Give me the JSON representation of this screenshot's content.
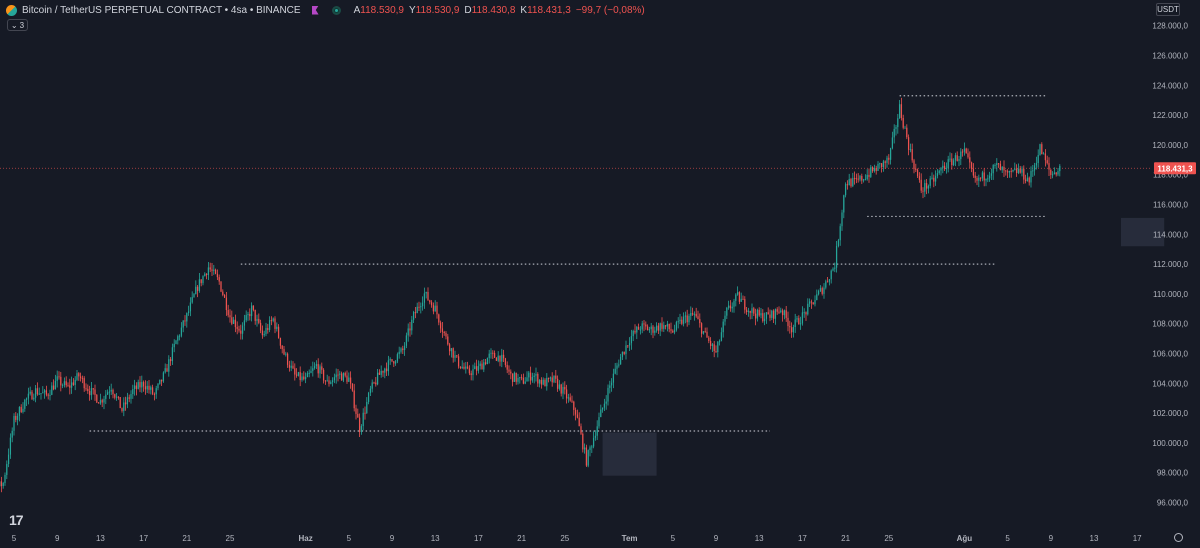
{
  "header": {
    "title": "Bitcoin / TetherUS PERPETUAL CONTRACT • 4sa • BINANCE",
    "ohlc": [
      {
        "label": "A",
        "value": "118.530,9"
      },
      {
        "label": "Y",
        "value": "118.530,9"
      },
      {
        "label": "D",
        "value": "118.430,8"
      },
      {
        "label": "K",
        "value": "118.431,3"
      }
    ],
    "change": "−99,7 (−0,08%)",
    "collapse_count": "3"
  },
  "currency": "USDT",
  "logo": "17",
  "colors": {
    "up": "#26a69a",
    "down": "#ef5350",
    "background": "#161a25",
    "level_line": "#d1d4dc",
    "zone": "#2a3040"
  },
  "chart_data": {
    "type": "candlestick",
    "y_range": [
      94800,
      128600
    ],
    "y_ticks": [
      "96.000,0",
      "98.000,0",
      "100.000,0",
      "102.000,0",
      "104.000,0",
      "106.000,0",
      "108.000,0",
      "110.000,0",
      "112.000,0",
      "114.000,0",
      "116.000,0",
      "118.000,0",
      "120.000,0",
      "122.000,0",
      "124.000,0",
      "126.000,0",
      "128.000,0"
    ],
    "x_labels": [
      "5",
      "9",
      "13",
      "17",
      "21",
      "25",
      "Haz",
      "5",
      "9",
      "13",
      "17",
      "21",
      "25",
      "Tem",
      "5",
      "9",
      "13",
      "17",
      "21",
      "25",
      "Ağu",
      "5",
      "9",
      "13",
      "17"
    ],
    "x_label_days": [
      5,
      9,
      13,
      17,
      21,
      25,
      32,
      36,
      40,
      44,
      48,
      52,
      56,
      62,
      66,
      70,
      74,
      78,
      82,
      86,
      93,
      97,
      101,
      105,
      109
    ],
    "bold_labels": [
      "Haz",
      "Tem",
      "Ağu"
    ],
    "last_price": "118.431,3",
    "last_price_value": 118431.3,
    "price_path": [
      [
        1,
        95800
      ],
      [
        2,
        95300
      ],
      [
        3,
        96800
      ],
      [
        4,
        97300
      ],
      [
        5,
        101500
      ],
      [
        6,
        102800
      ],
      [
        7,
        103500
      ],
      [
        8,
        103200
      ],
      [
        9,
        104200
      ],
      [
        10,
        103700
      ],
      [
        11,
        104500
      ],
      [
        12,
        103500
      ],
      [
        13,
        102800
      ],
      [
        14,
        103800
      ],
      [
        15,
        102200
      ],
      [
        16,
        103500
      ],
      [
        17,
        104000
      ],
      [
        18,
        103200
      ],
      [
        19,
        104700
      ],
      [
        20,
        106800
      ],
      [
        21,
        108500
      ],
      [
        22,
        110500
      ],
      [
        23,
        111800
      ],
      [
        24,
        110800
      ],
      [
        25,
        108500
      ],
      [
        26,
        107500
      ],
      [
        27,
        109000
      ],
      [
        28,
        107200
      ],
      [
        29,
        108300
      ],
      [
        30,
        106000
      ],
      [
        31,
        104500
      ],
      [
        32,
        104200
      ],
      [
        33,
        105200
      ],
      [
        34,
        104000
      ],
      [
        35,
        104600
      ],
      [
        36,
        104300
      ],
      [
        37,
        101000
      ],
      [
        38,
        103500
      ],
      [
        39,
        104800
      ],
      [
        40,
        105500
      ],
      [
        41,
        106200
      ],
      [
        42,
        108500
      ],
      [
        43,
        110000
      ],
      [
        44,
        109000
      ],
      [
        45,
        107000
      ],
      [
        46,
        105500
      ],
      [
        47,
        104700
      ],
      [
        48,
        105000
      ],
      [
        49,
        105800
      ],
      [
        50,
        105800
      ],
      [
        51,
        104500
      ],
      [
        52,
        104100
      ],
      [
        53,
        104600
      ],
      [
        54,
        104000
      ],
      [
        55,
        104200
      ],
      [
        56,
        103300
      ],
      [
        57,
        102100
      ],
      [
        58,
        98800
      ],
      [
        59,
        101200
      ],
      [
        60,
        103500
      ],
      [
        61,
        105500
      ],
      [
        62,
        107000
      ],
      [
        63,
        107800
      ],
      [
        64,
        107600
      ],
      [
        65,
        107900
      ],
      [
        66,
        107500
      ],
      [
        67,
        108300
      ],
      [
        68,
        108600
      ],
      [
        69,
        107200
      ],
      [
        70,
        106000
      ],
      [
        71,
        108800
      ],
      [
        72,
        109800
      ],
      [
        73,
        109000
      ],
      [
        74,
        108500
      ],
      [
        75,
        108500
      ],
      [
        76,
        109000
      ],
      [
        77,
        107700
      ],
      [
        78,
        108500
      ],
      [
        79,
        109500
      ],
      [
        80,
        110500
      ],
      [
        81,
        112000
      ],
      [
        82,
        117500
      ],
      [
        83,
        117500
      ],
      [
        84,
        118000
      ],
      [
        85,
        118500
      ],
      [
        86,
        119000
      ],
      [
        87,
        122500
      ],
      [
        88,
        119500
      ],
      [
        89,
        117000
      ],
      [
        90,
        117500
      ],
      [
        91,
        118500
      ],
      [
        92,
        119000
      ],
      [
        93,
        119500
      ],
      [
        94,
        117500
      ],
      [
        95,
        118000
      ],
      [
        96,
        118600
      ],
      [
        97,
        117900
      ],
      [
        98,
        118300
      ],
      [
        99,
        117600
      ],
      [
        100,
        119800
      ],
      [
        101,
        118000
      ],
      [
        102,
        118500
      ]
    ],
    "levels": [
      {
        "value": 123300,
        "from_day": 87,
        "to_day": 125
      },
      {
        "value": 115200,
        "from_day": 84,
        "to_day": 125
      },
      {
        "value": 112000,
        "from_day": 26,
        "to_day": 96
      },
      {
        "value": 100800,
        "from_day": 12,
        "to_day": 75
      }
    ],
    "zones": [
      {
        "from_day": 59.5,
        "to_day": 64.5,
        "y_low": 97800,
        "y_high": 100700
      },
      {
        "from_day": 107.5,
        "to_day": 111.5,
        "y_low": 113200,
        "y_high": 115100
      }
    ]
  }
}
